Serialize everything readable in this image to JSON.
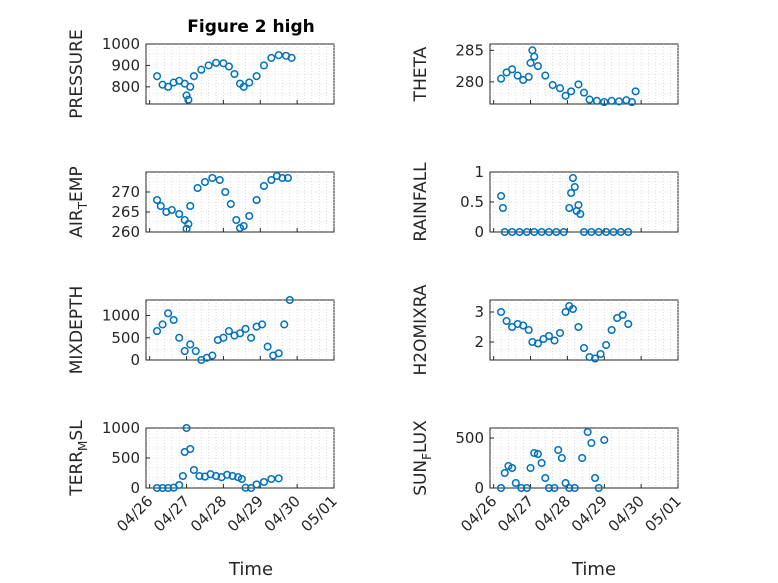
{
  "title": "Figure 2 high",
  "xlabel": "Time",
  "x_ticks": [
    "04/26",
    "04/27",
    "04/28",
    "04/29",
    "04/30",
    "05/01"
  ],
  "colors": {
    "marker": "#0072bd",
    "axis": "#262626",
    "grid": "#c8c8c8"
  },
  "chart_data": [
    {
      "type": "scatter",
      "id": "pressure",
      "ylabel": "PRESSURE",
      "ylim": [
        720,
        1000
      ],
      "y_ticks": [
        800,
        900,
        1000
      ],
      "grid": true,
      "points": [
        [
          26.2,
          850
        ],
        [
          26.35,
          810
        ],
        [
          26.5,
          800
        ],
        [
          26.65,
          820
        ],
        [
          26.8,
          828
        ],
        [
          26.95,
          815
        ],
        [
          27.0,
          760
        ],
        [
          27.05,
          740
        ],
        [
          27.1,
          800
        ],
        [
          27.2,
          850
        ],
        [
          27.4,
          880
        ],
        [
          27.6,
          900
        ],
        [
          27.8,
          912
        ],
        [
          28.0,
          910
        ],
        [
          28.15,
          895
        ],
        [
          28.3,
          860
        ],
        [
          28.45,
          815
        ],
        [
          28.55,
          800
        ],
        [
          28.7,
          820
        ],
        [
          28.9,
          850
        ],
        [
          29.1,
          900
        ],
        [
          29.3,
          935
        ],
        [
          29.5,
          948
        ],
        [
          29.7,
          945
        ],
        [
          29.85,
          935
        ]
      ]
    },
    {
      "type": "scatter",
      "id": "theta",
      "ylabel": "THETA",
      "ylim": [
        276.5,
        286
      ],
      "y_ticks": [
        280,
        285
      ],
      "grid": true,
      "points": [
        [
          26.2,
          280.5
        ],
        [
          26.35,
          281.5
        ],
        [
          26.5,
          282
        ],
        [
          26.65,
          281
        ],
        [
          26.8,
          280.3
        ],
        [
          26.95,
          280.8
        ],
        [
          27.0,
          283
        ],
        [
          27.05,
          285
        ],
        [
          27.1,
          284
        ],
        [
          27.2,
          282.5
        ],
        [
          27.4,
          281
        ],
        [
          27.6,
          279.5
        ],
        [
          27.8,
          279
        ],
        [
          27.95,
          277.8
        ],
        [
          28.1,
          278.5
        ],
        [
          28.3,
          279.6
        ],
        [
          28.45,
          278.3
        ],
        [
          28.6,
          277.2
        ],
        [
          28.8,
          277
        ],
        [
          29.0,
          276.8
        ],
        [
          29.2,
          277
        ],
        [
          29.4,
          276.9
        ],
        [
          29.6,
          277.1
        ],
        [
          29.75,
          276.8
        ],
        [
          29.85,
          278.5
        ]
      ]
    },
    {
      "type": "scatter",
      "id": "air_temp",
      "ylabel": "AIR",
      "ylabel_sub": "T",
      "ylabel_rest": "EMP",
      "ylim": [
        260,
        275
      ],
      "y_ticks": [
        260,
        265,
        270
      ],
      "grid": true,
      "points": [
        [
          26.2,
          268
        ],
        [
          26.3,
          266.5
        ],
        [
          26.45,
          265
        ],
        [
          26.6,
          265.5
        ],
        [
          26.8,
          264.5
        ],
        [
          26.95,
          263
        ],
        [
          27.0,
          260.8
        ],
        [
          27.05,
          262
        ],
        [
          27.1,
          266.5
        ],
        [
          27.3,
          271
        ],
        [
          27.5,
          272.5
        ],
        [
          27.7,
          273.5
        ],
        [
          27.9,
          273
        ],
        [
          28.05,
          270
        ],
        [
          28.2,
          267
        ],
        [
          28.35,
          263
        ],
        [
          28.45,
          261
        ],
        [
          28.55,
          261.5
        ],
        [
          28.7,
          264
        ],
        [
          28.9,
          268
        ],
        [
          29.1,
          271.5
        ],
        [
          29.3,
          273
        ],
        [
          29.45,
          274
        ],
        [
          29.6,
          273.5
        ],
        [
          29.75,
          273.5
        ]
      ]
    },
    {
      "type": "scatter",
      "id": "rainfall",
      "ylabel": "RAINFALL",
      "ylim": [
        0,
        1
      ],
      "y_ticks": [
        0,
        0.5,
        1
      ],
      "grid": true,
      "points": [
        [
          26.2,
          0.6
        ],
        [
          26.25,
          0.4
        ],
        [
          26.3,
          0
        ],
        [
          26.5,
          0
        ],
        [
          26.7,
          0
        ],
        [
          26.9,
          0
        ],
        [
          27.1,
          0
        ],
        [
          27.3,
          0
        ],
        [
          27.5,
          0
        ],
        [
          27.7,
          0
        ],
        [
          27.9,
          0
        ],
        [
          28.05,
          0.4
        ],
        [
          28.1,
          0.65
        ],
        [
          28.15,
          0.9
        ],
        [
          28.2,
          0.75
        ],
        [
          28.25,
          0.35
        ],
        [
          28.3,
          0.45
        ],
        [
          28.35,
          0.3
        ],
        [
          28.45,
          0
        ],
        [
          28.65,
          0
        ],
        [
          28.85,
          0
        ],
        [
          29.05,
          0
        ],
        [
          29.25,
          0
        ],
        [
          29.45,
          0
        ],
        [
          29.65,
          0
        ]
      ]
    },
    {
      "type": "scatter",
      "id": "mixdepth",
      "ylabel": "MIXDEPTH",
      "ylim": [
        0,
        1350
      ],
      "y_ticks": [
        0,
        500,
        1000
      ],
      "grid": true,
      "points": [
        [
          26.2,
          650
        ],
        [
          26.35,
          800
        ],
        [
          26.5,
          1050
        ],
        [
          26.65,
          900
        ],
        [
          26.8,
          500
        ],
        [
          26.95,
          200
        ],
        [
          27.1,
          350
        ],
        [
          27.25,
          200
        ],
        [
          27.4,
          0
        ],
        [
          27.55,
          50
        ],
        [
          27.7,
          100
        ],
        [
          27.85,
          450
        ],
        [
          28.0,
          500
        ],
        [
          28.15,
          650
        ],
        [
          28.3,
          550
        ],
        [
          28.45,
          600
        ],
        [
          28.6,
          700
        ],
        [
          28.75,
          500
        ],
        [
          28.9,
          750
        ],
        [
          29.05,
          800
        ],
        [
          29.2,
          300
        ],
        [
          29.35,
          100
        ],
        [
          29.5,
          150
        ],
        [
          29.65,
          800
        ],
        [
          29.8,
          1350
        ]
      ]
    },
    {
      "type": "scatter",
      "id": "h2omixra",
      "ylabel": "H2OMIXRA",
      "ylim": [
        1.4,
        3.4
      ],
      "y_ticks": [
        2,
        3
      ],
      "grid": true,
      "points": [
        [
          26.2,
          3.0
        ],
        [
          26.35,
          2.7
        ],
        [
          26.5,
          2.5
        ],
        [
          26.65,
          2.6
        ],
        [
          26.8,
          2.55
        ],
        [
          26.95,
          2.4
        ],
        [
          27.05,
          2.0
        ],
        [
          27.2,
          1.95
        ],
        [
          27.35,
          2.1
        ],
        [
          27.5,
          2.2
        ],
        [
          27.65,
          2.05
        ],
        [
          27.8,
          2.3
        ],
        [
          27.95,
          3.0
        ],
        [
          28.05,
          3.2
        ],
        [
          28.15,
          3.1
        ],
        [
          28.3,
          2.5
        ],
        [
          28.45,
          1.8
        ],
        [
          28.6,
          1.5
        ],
        [
          28.75,
          1.45
        ],
        [
          28.9,
          1.6
        ],
        [
          29.05,
          1.9
        ],
        [
          29.2,
          2.4
        ],
        [
          29.35,
          2.8
        ],
        [
          29.5,
          2.9
        ],
        [
          29.65,
          2.6
        ]
      ]
    },
    {
      "type": "scatter",
      "id": "terr_msl",
      "ylabel": "TERR",
      "ylabel_sub": "M",
      "ylabel_rest": "SL",
      "ylim": [
        0,
        1000
      ],
      "y_ticks": [
        0,
        500,
        1000
      ],
      "grid": true,
      "points": [
        [
          26.2,
          0
        ],
        [
          26.35,
          0
        ],
        [
          26.5,
          0
        ],
        [
          26.65,
          5
        ],
        [
          26.8,
          50
        ],
        [
          26.9,
          200
        ],
        [
          26.95,
          600
        ],
        [
          27.0,
          1000
        ],
        [
          27.1,
          650
        ],
        [
          27.2,
          300
        ],
        [
          27.35,
          200
        ],
        [
          27.5,
          190
        ],
        [
          27.65,
          230
        ],
        [
          27.8,
          200
        ],
        [
          27.95,
          180
        ],
        [
          28.1,
          220
        ],
        [
          28.25,
          200
        ],
        [
          28.4,
          180
        ],
        [
          28.5,
          150
        ],
        [
          28.6,
          5
        ],
        [
          28.75,
          0
        ],
        [
          28.9,
          60
        ],
        [
          29.1,
          100
        ],
        [
          29.3,
          150
        ],
        [
          29.5,
          160
        ]
      ]
    },
    {
      "type": "scatter",
      "id": "sun_flux",
      "ylabel": "SUN",
      "ylabel_sub": "F",
      "ylabel_rest": "LUX",
      "ylim": [
        0,
        600
      ],
      "y_ticks": [
        0,
        500
      ],
      "grid": true,
      "points": [
        [
          26.2,
          0
        ],
        [
          26.3,
          150
        ],
        [
          26.4,
          220
        ],
        [
          26.5,
          200
        ],
        [
          26.6,
          50
        ],
        [
          26.75,
          0
        ],
        [
          26.9,
          0
        ],
        [
          27.0,
          200
        ],
        [
          27.1,
          350
        ],
        [
          27.2,
          340
        ],
        [
          27.3,
          250
        ],
        [
          27.4,
          100
        ],
        [
          27.5,
          0
        ],
        [
          27.65,
          0
        ],
        [
          27.75,
          380
        ],
        [
          27.85,
          300
        ],
        [
          27.95,
          50
        ],
        [
          28.05,
          0
        ],
        [
          28.2,
          0
        ],
        [
          28.4,
          300
        ],
        [
          28.55,
          560
        ],
        [
          28.65,
          450
        ],
        [
          28.75,
          100
        ],
        [
          28.85,
          0
        ],
        [
          29.0,
          480
        ]
      ]
    }
  ]
}
